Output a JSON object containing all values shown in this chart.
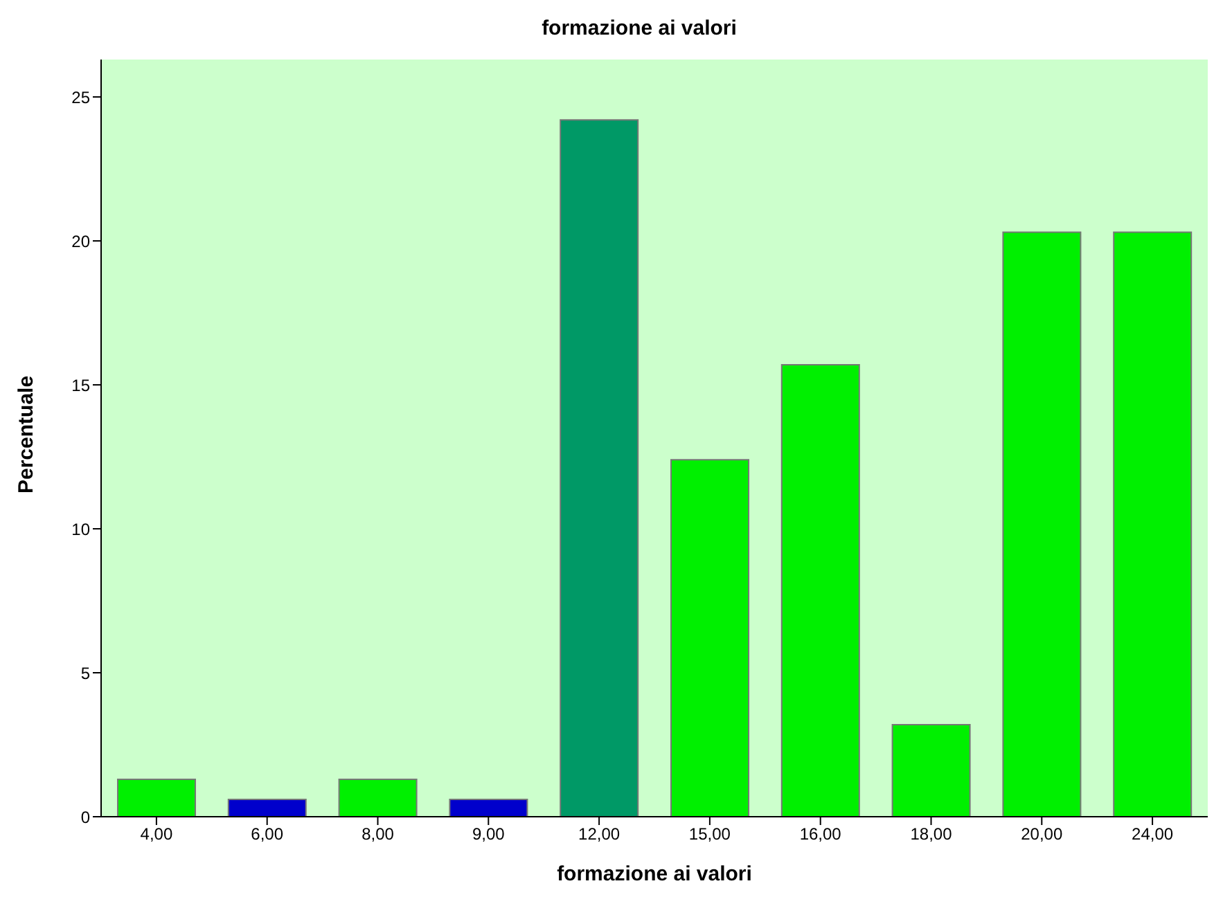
{
  "chart_data": {
    "type": "bar",
    "title": "formazione ai valori",
    "xlabel": "formazione ai valori",
    "ylabel": "Percentuale",
    "categories": [
      "4,00",
      "6,00",
      "8,00",
      "9,00",
      "12,00",
      "15,00",
      "16,00",
      "18,00",
      "20,00",
      "24,00"
    ],
    "values": [
      1.3,
      0.6,
      1.3,
      0.6,
      24.2,
      12.4,
      15.7,
      3.2,
      20.3,
      20.3
    ],
    "colors": [
      "#00f000",
      "#0000cc",
      "#00f000",
      "#0000cc",
      "#009966",
      "#00f000",
      "#00f000",
      "#00f000",
      "#00f000",
      "#00f000"
    ],
    "ylim": [
      0,
      26.3
    ],
    "yticks": [
      0,
      5,
      10,
      15,
      20,
      25
    ],
    "grid": false,
    "legend": false
  }
}
